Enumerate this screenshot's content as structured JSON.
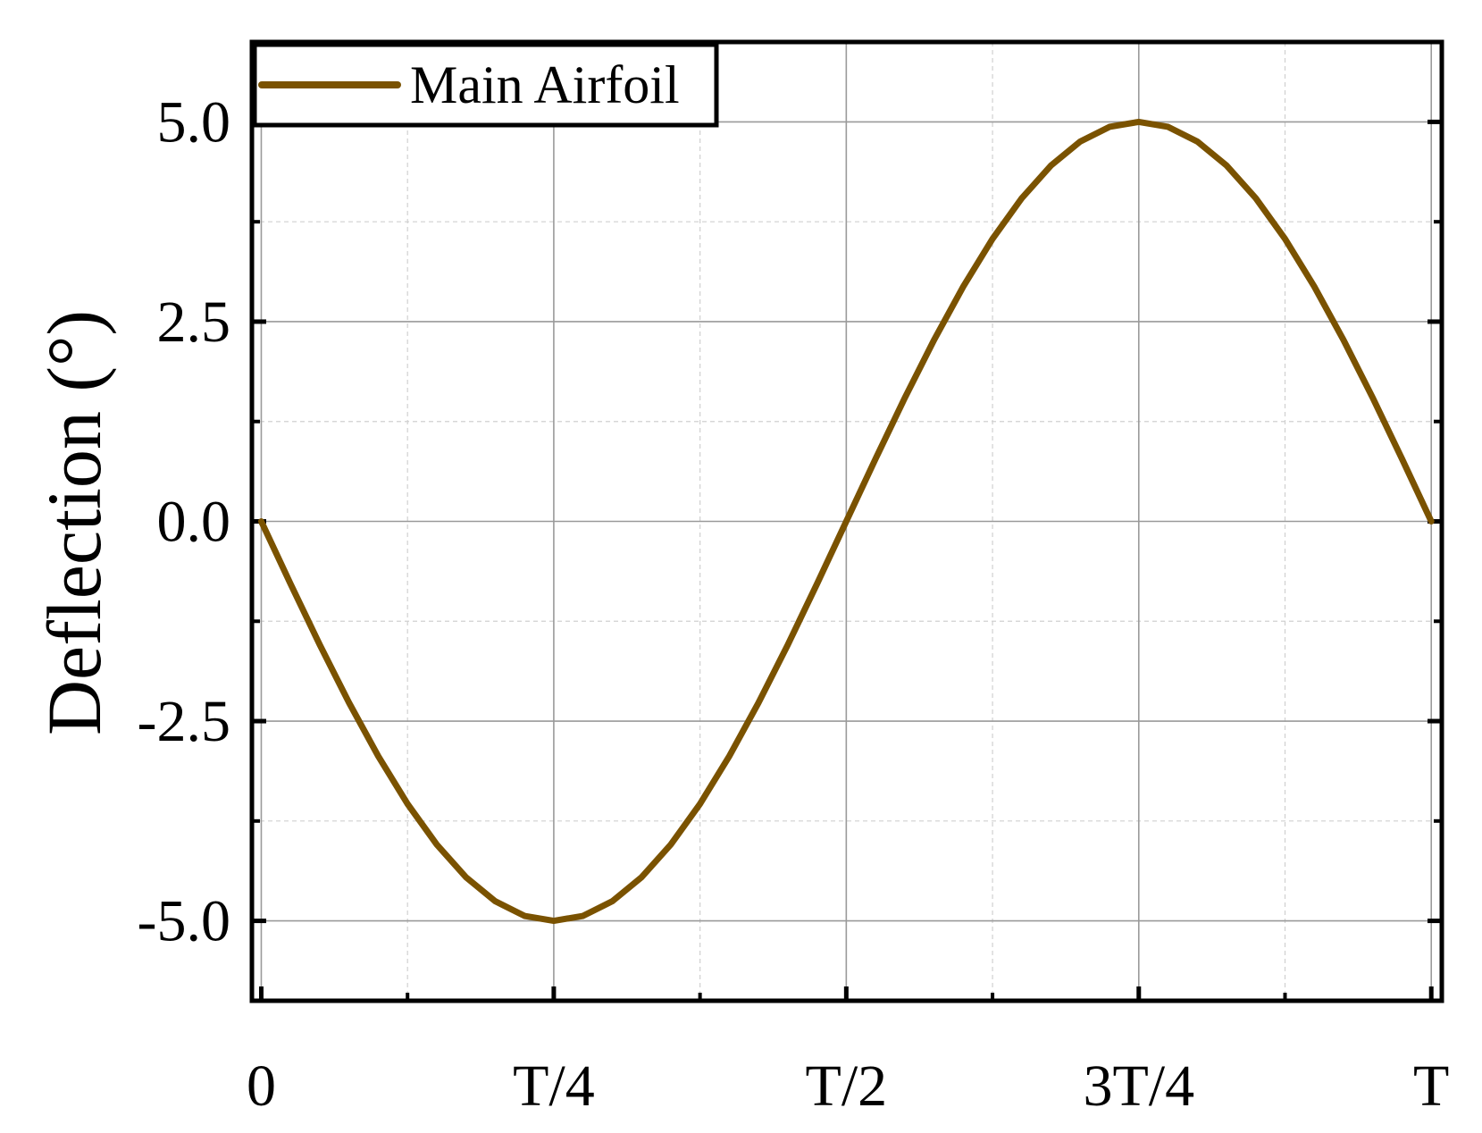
{
  "chart_data": {
    "type": "line",
    "ylabel": "Deflection (°)",
    "x": [
      0,
      0.025,
      0.05,
      0.075,
      0.1,
      0.125,
      0.15,
      0.175,
      0.2,
      0.225,
      0.25,
      0.275,
      0.3,
      0.325,
      0.35,
      0.375,
      0.4,
      0.425,
      0.45,
      0.475,
      0.5,
      0.525,
      0.55,
      0.575,
      0.6,
      0.625,
      0.65,
      0.675,
      0.7,
      0.725,
      0.75,
      0.775,
      0.8,
      0.825,
      0.85,
      0.875,
      0.9,
      0.925,
      0.95,
      0.975,
      1
    ],
    "series": [
      {
        "name": "Main Airfoil",
        "color": "#7a5200",
        "values": [
          0,
          -0.782,
          -1.545,
          -2.27,
          -2.939,
          -3.536,
          -4.045,
          -4.455,
          -4.755,
          -4.938,
          -5,
          -4.938,
          -4.755,
          -4.455,
          -4.045,
          -3.536,
          -2.939,
          -2.27,
          -1.545,
          -0.782,
          0,
          0.782,
          1.545,
          2.27,
          2.939,
          3.536,
          4.045,
          4.455,
          4.755,
          4.938,
          5,
          4.938,
          4.755,
          4.455,
          4.045,
          3.536,
          2.939,
          2.27,
          1.545,
          0.782,
          0
        ]
      }
    ],
    "xlim": [
      -0.008,
      1.009
    ],
    "ylim": [
      -6,
      6
    ],
    "xticks": [
      0,
      {
        "value": 0.25,
        "label": "T/4"
      },
      {
        "value": 0.5,
        "label": "T/2"
      },
      {
        "value": 0.75,
        "label": "3T/4"
      },
      {
        "value": 1,
        "label": "T"
      }
    ],
    "yticks": [
      {
        "value": -5,
        "label": "-5.0"
      },
      {
        "value": -2.5,
        "label": "-2.5"
      },
      {
        "value": 0,
        "label": "0.0"
      },
      {
        "value": 2.5,
        "label": "2.5"
      },
      {
        "value": 5,
        "label": "5.0"
      }
    ],
    "minor_xticks": [
      0.125,
      0.375,
      0.625,
      0.875
    ],
    "minor_yticks": [
      -3.75,
      -1.25,
      1.25,
      3.75
    ],
    "grid": true,
    "legend": "upper left"
  }
}
